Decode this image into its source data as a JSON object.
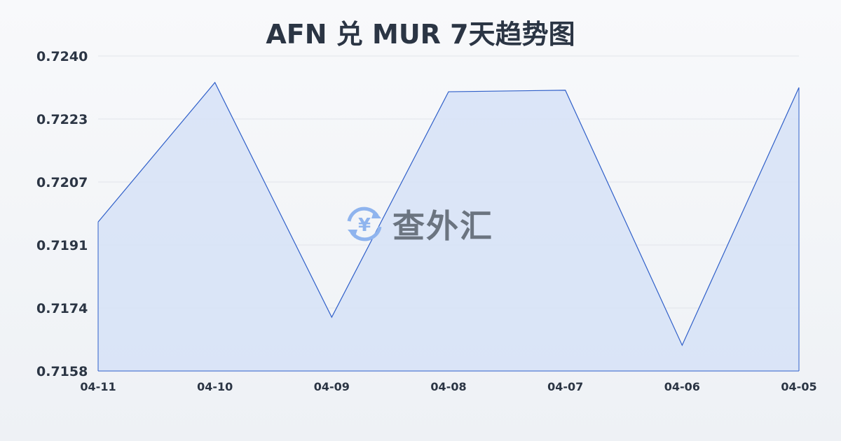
{
  "chart_data": {
    "type": "area",
    "title": "AFN 兑 MUR 7天趋势图",
    "categories": [
      "04-11",
      "04-10",
      "04-09",
      "04-08",
      "04-07",
      "04-06",
      "04-05"
    ],
    "series": [
      {
        "values": [
          0.71968,
          0.72331,
          0.7172,
          0.72307,
          0.72311,
          0.71647,
          0.72318
        ]
      }
    ],
    "yticks": [
      "0.7240",
      "0.7223",
      "0.7207",
      "0.7191",
      "0.7174",
      "0.7158"
    ],
    "ylim": [
      0.7158,
      0.724
    ],
    "grid": true,
    "line_color": "#2f5fc9",
    "fill_color": "#d6e2f7"
  },
  "watermark": {
    "text": "查外汇",
    "icon": "yen-exchange-icon",
    "icon_color": "#8fb4ee"
  }
}
